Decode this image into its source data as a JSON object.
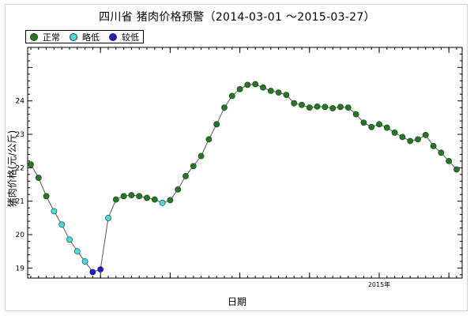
{
  "chart_data": {
    "type": "line",
    "title": "四川省 猪肉价格预警（2014-03-01 ～2015-03-27）",
    "xlabel": "日期",
    "ylabel": "猪肉价格(元/公斤)",
    "ylim": [
      18.7,
      25.6
    ],
    "yticks": [
      "19",
      "20",
      "21",
      "22",
      "23",
      "24"
    ],
    "xtick_label": "2015年",
    "grid": false,
    "legend_position": "top-left",
    "legend": [
      {
        "key": "normal",
        "label": "正常",
        "color": "#1e7b1e"
      },
      {
        "key": "slightly_low",
        "label": "略低",
        "color": "#40e0e0"
      },
      {
        "key": "low",
        "label": "较低",
        "color": "#1a1ad0"
      }
    ],
    "series": [
      {
        "values": [
          22.1,
          21.7,
          21.15,
          20.7,
          20.3,
          19.85,
          19.5,
          19.2,
          18.88,
          18.96,
          20.5,
          21.05,
          21.15,
          21.18,
          21.15,
          21.1,
          21.05,
          20.95,
          21.03,
          21.35,
          21.75,
          22.05,
          22.35,
          22.85,
          23.3,
          23.8,
          24.15,
          24.35,
          24.48,
          24.5,
          24.4,
          24.3,
          24.25,
          24.18,
          23.93,
          23.88,
          23.8,
          23.83,
          23.82,
          23.78,
          23.82,
          23.8,
          23.6,
          23.35,
          23.22,
          23.3,
          23.2,
          23.05,
          22.92,
          22.8,
          22.85,
          22.98,
          22.65,
          22.45,
          22.2,
          21.95
        ],
        "status": [
          "normal",
          "normal",
          "normal",
          "slightly_low",
          "slightly_low",
          "slightly_low",
          "slightly_low",
          "slightly_low",
          "low",
          "low",
          "slightly_low",
          "normal",
          "normal",
          "normal",
          "normal",
          "normal",
          "normal",
          "slightly_low",
          "normal",
          "normal",
          "normal",
          "normal",
          "normal",
          "normal",
          "normal",
          "normal",
          "normal",
          "normal",
          "normal",
          "normal",
          "normal",
          "normal",
          "normal",
          "normal",
          "normal",
          "normal",
          "normal",
          "normal",
          "normal",
          "normal",
          "normal",
          "normal",
          "normal",
          "normal",
          "normal",
          "normal",
          "normal",
          "normal",
          "normal",
          "normal",
          "normal",
          "normal",
          "normal",
          "normal",
          "normal",
          "normal"
        ]
      }
    ]
  }
}
